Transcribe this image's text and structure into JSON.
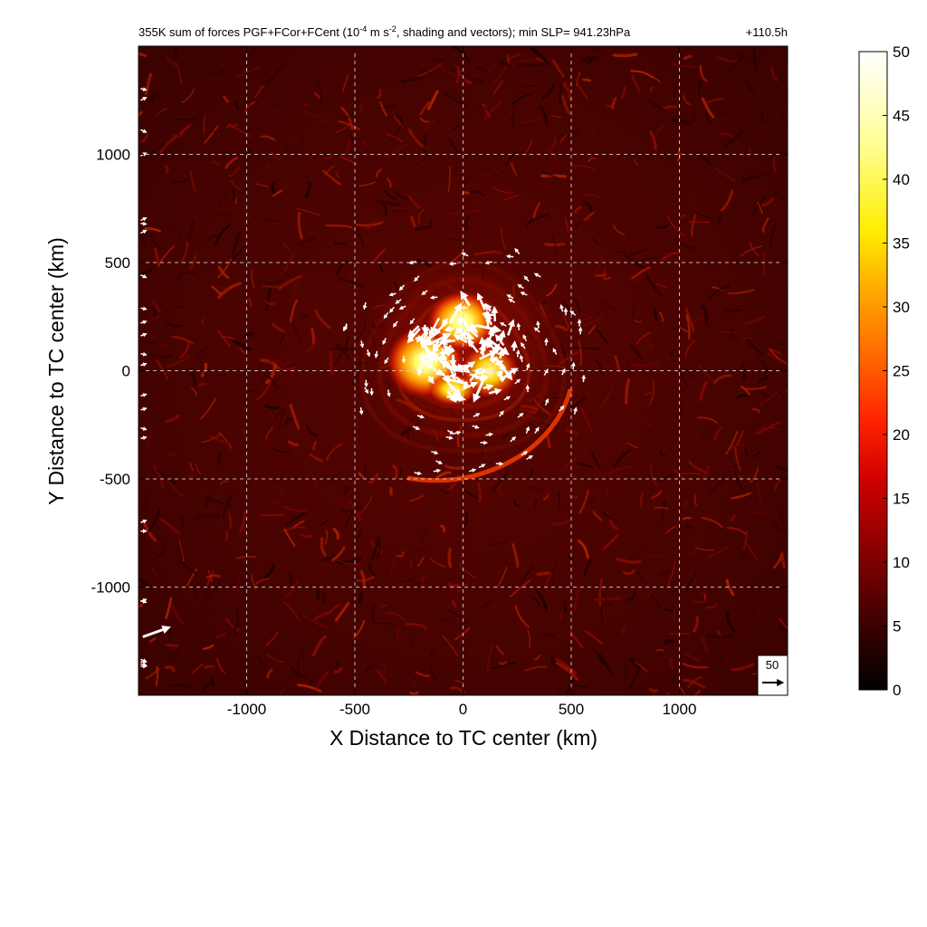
{
  "chart_data": {
    "type": "heatmap",
    "title": {
      "main": "355K sum of forces PGF+FCor+FCent (10",
      "exp1": "-4",
      "mid": " m s",
      "exp2": "-2",
      "tail": ", shading and vectors); min SLP= 941.23hPa",
      "time": "+110.5h"
    },
    "xlabel": "X Distance to TC center (km)",
    "ylabel": "Y Distance to TC center (km)",
    "xlim": [
      -1500,
      1500
    ],
    "ylim": [
      -1500,
      1500
    ],
    "x_ticks": [
      -1000,
      -500,
      0,
      500,
      1000
    ],
    "y_ticks": [
      -1000,
      -500,
      0,
      500,
      1000
    ],
    "x_tick_labels": [
      "-1000",
      "-500",
      "0",
      "500",
      "1000"
    ],
    "y_tick_labels": [
      "-1000",
      "-500",
      "0",
      "500",
      "1000"
    ],
    "grid": true,
    "colorbar": {
      "min": 0,
      "max": 50,
      "ticks": [
        "0",
        "5",
        "10",
        "15",
        "20",
        "25",
        "30",
        "35",
        "40",
        "45",
        "50"
      ],
      "colormap": "hot"
    },
    "reference_vector": {
      "label": "50",
      "magnitude": 50
    },
    "features": {
      "background_level": 6,
      "core_max": 50,
      "core_center_km": [
        0,
        80
      ],
      "rainband_levels": [
        12,
        15,
        20
      ]
    },
    "vectors_sample": [
      {
        "x": -220,
        "y": 150,
        "u": 30,
        "v": -10
      },
      {
        "x": -160,
        "y": 120,
        "u": 40,
        "v": 20
      },
      {
        "x": -120,
        "y": 40,
        "u": -30,
        "v": 40
      },
      {
        "x": -60,
        "y": 220,
        "u": 20,
        "v": 35
      },
      {
        "x": 30,
        "y": 300,
        "u": -15,
        "v": 25
      },
      {
        "x": 60,
        "y": 210,
        "u": 45,
        "v": -10
      },
      {
        "x": 110,
        "y": 150,
        "u": 40,
        "v": -30
      },
      {
        "x": 150,
        "y": 60,
        "u": 30,
        "v": -40
      },
      {
        "x": 100,
        "y": -30,
        "u": -20,
        "v": -45
      },
      {
        "x": 20,
        "y": -60,
        "u": -45,
        "v": 10
      },
      {
        "x": -60,
        "y": 10,
        "u": -35,
        "v": 30
      },
      {
        "x": -1480,
        "y": -1230,
        "u": 50,
        "v": 18
      }
    ]
  }
}
